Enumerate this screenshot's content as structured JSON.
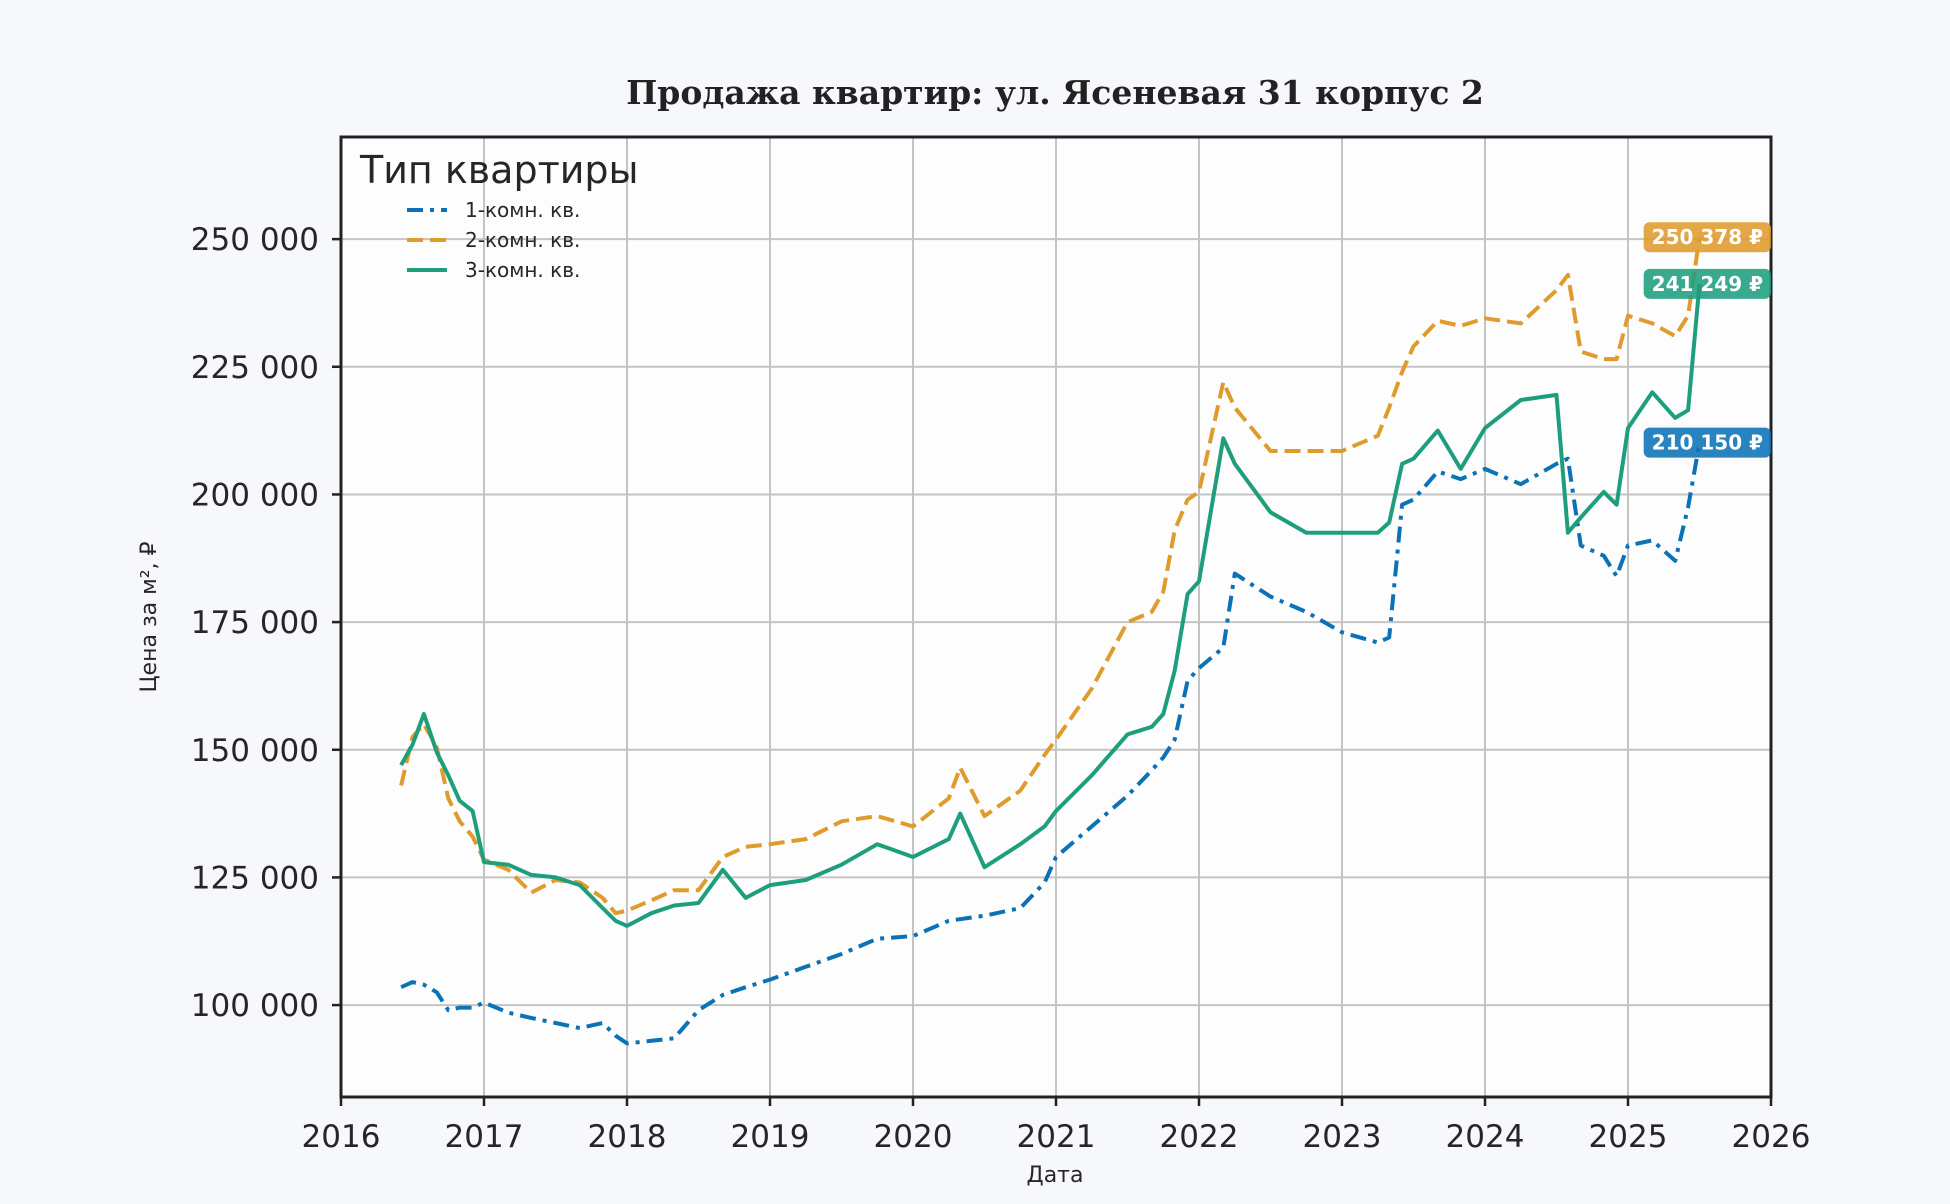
{
  "chart_data": {
    "type": "line",
    "title": "Продажа квартир: ул. Ясеневая 31 корпус 2",
    "xlabel": "Дата",
    "ylabel": "Цена за м², ₽",
    "xlim": [
      2016,
      2026
    ],
    "ylim": [
      82000,
      270000
    ],
    "x_ticks": [
      2016,
      2017,
      2018,
      2019,
      2020,
      2021,
      2022,
      2023,
      2024,
      2025,
      2026
    ],
    "x_tick_labels": [
      "2016",
      "2017",
      "2018",
      "2019",
      "2020",
      "2021",
      "2022",
      "2023",
      "2024",
      "2025",
      "2026"
    ],
    "y_ticks": [
      100000,
      125000,
      150000,
      175000,
      200000,
      225000,
      250000
    ],
    "y_tick_labels": [
      "100 000",
      "125 000",
      "150 000",
      "175 000",
      "200 000",
      "225 000",
      "250 000"
    ],
    "grid": true,
    "legend": {
      "title": "Тип квартиры",
      "placement": "top-left"
    },
    "series": [
      {
        "name": "1-комн. кв.",
        "color": "#0b72b5",
        "dash": "dash-dot",
        "end_label": "210 150 ₽",
        "x": [
          2016.42,
          2016.5,
          2016.58,
          2016.67,
          2016.75,
          2016.83,
          2016.92,
          2017.0,
          2017.17,
          2017.33,
          2017.5,
          2017.67,
          2017.83,
          2017.92,
          2018.0,
          2018.17,
          2018.33,
          2018.5,
          2018.67,
          2018.83,
          2019.0,
          2019.25,
          2019.5,
          2019.75,
          2020.0,
          2020.25,
          2020.5,
          2020.75,
          2020.92,
          2021.0,
          2021.25,
          2021.5,
          2021.67,
          2021.75,
          2021.83,
          2021.92,
          2022.0,
          2022.17,
          2022.25,
          2022.5,
          2022.75,
          2023.0,
          2023.25,
          2023.33,
          2023.42,
          2023.5,
          2023.67,
          2023.83,
          2024.0,
          2024.25,
          2024.5,
          2024.58,
          2024.67,
          2024.83,
          2024.92,
          2025.0,
          2025.17,
          2025.33,
          2025.42,
          2025.5
        ],
        "values": [
          103500,
          104500,
          104000,
          102500,
          99000,
          99500,
          99500,
          100500,
          98500,
          97500,
          96500,
          95500,
          96500,
          94000,
          92500,
          93000,
          93500,
          99000,
          102000,
          103500,
          105000,
          107500,
          110000,
          113000,
          113500,
          116500,
          117500,
          119000,
          124000,
          129000,
          135000,
          141000,
          146000,
          148500,
          152000,
          163500,
          166000,
          170000,
          184500,
          180000,
          177000,
          173000,
          171000,
          172000,
          198000,
          199000,
          204500,
          203000,
          205000,
          202000,
          206000,
          207000,
          190000,
          188000,
          184000,
          190000,
          191000,
          187000,
          197500,
          210150
        ]
      },
      {
        "name": "2-комн. кв.",
        "color": "#e09b2d",
        "dash": "dash",
        "end_label": "250 378 ₽",
        "x": [
          2016.42,
          2016.5,
          2016.58,
          2016.67,
          2016.75,
          2016.83,
          2016.92,
          2017.0,
          2017.17,
          2017.33,
          2017.5,
          2017.67,
          2017.83,
          2017.92,
          2018.0,
          2018.17,
          2018.33,
          2018.5,
          2018.67,
          2018.83,
          2019.0,
          2019.25,
          2019.5,
          2019.75,
          2020.0,
          2020.25,
          2020.33,
          2020.5,
          2020.75,
          2020.92,
          2021.0,
          2021.25,
          2021.5,
          2021.67,
          2021.75,
          2021.83,
          2021.92,
          2022.0,
          2022.17,
          2022.25,
          2022.5,
          2022.75,
          2023.0,
          2023.25,
          2023.33,
          2023.42,
          2023.5,
          2023.67,
          2023.83,
          2024.0,
          2024.25,
          2024.5,
          2024.58,
          2024.67,
          2024.83,
          2024.92,
          2025.0,
          2025.17,
          2025.33,
          2025.42,
          2025.5
        ],
        "values": [
          143000,
          152500,
          155000,
          150500,
          140500,
          136000,
          133000,
          128500,
          126500,
          122000,
          124500,
          124000,
          121000,
          118000,
          118500,
          120500,
          122500,
          122500,
          129000,
          131000,
          131500,
          132500,
          136000,
          137000,
          135000,
          140500,
          146500,
          137000,
          142000,
          149000,
          152000,
          162000,
          175000,
          177000,
          181000,
          193000,
          199000,
          200500,
          222000,
          217000,
          208500,
          208500,
          208500,
          211500,
          217000,
          224000,
          229000,
          234000,
          233000,
          234500,
          233500,
          240000,
          243000,
          228000,
          226500,
          226500,
          235000,
          233500,
          231000,
          235000,
          250378
        ]
      },
      {
        "name": "3-комн. кв.",
        "color": "#1f9e7e",
        "dash": "solid",
        "end_label": "241 249 ₽",
        "x": [
          2016.42,
          2016.5,
          2016.58,
          2016.67,
          2016.75,
          2016.83,
          2016.92,
          2017.0,
          2017.17,
          2017.33,
          2017.5,
          2017.67,
          2017.83,
          2017.92,
          2018.0,
          2018.17,
          2018.33,
          2018.5,
          2018.67,
          2018.83,
          2019.0,
          2019.25,
          2019.5,
          2019.75,
          2020.0,
          2020.25,
          2020.33,
          2020.5,
          2020.75,
          2020.92,
          2021.0,
          2021.25,
          2021.5,
          2021.67,
          2021.75,
          2021.83,
          2021.92,
          2022.0,
          2022.17,
          2022.25,
          2022.5,
          2022.75,
          2023.0,
          2023.25,
          2023.33,
          2023.42,
          2023.5,
          2023.67,
          2023.83,
          2024.0,
          2024.25,
          2024.5,
          2024.58,
          2024.67,
          2024.83,
          2024.92,
          2025.0,
          2025.17,
          2025.33,
          2025.42,
          2025.5
        ],
        "values": [
          147000,
          151000,
          157000,
          149500,
          145000,
          140000,
          138000,
          128000,
          127500,
          125500,
          125000,
          123500,
          119000,
          116500,
          115500,
          118000,
          119500,
          120000,
          126500,
          121000,
          123500,
          124500,
          127500,
          131500,
          129000,
          132500,
          137500,
          127000,
          131500,
          135000,
          138000,
          145000,
          153000,
          154500,
          157000,
          165500,
          180500,
          183000,
          211000,
          206000,
          196500,
          192500,
          192500,
          192500,
          194500,
          206000,
          207000,
          212500,
          205000,
          213000,
          218500,
          219500,
          192500,
          195500,
          200500,
          198000,
          213000,
          220000,
          215000,
          216500,
          241249
        ]
      }
    ]
  }
}
